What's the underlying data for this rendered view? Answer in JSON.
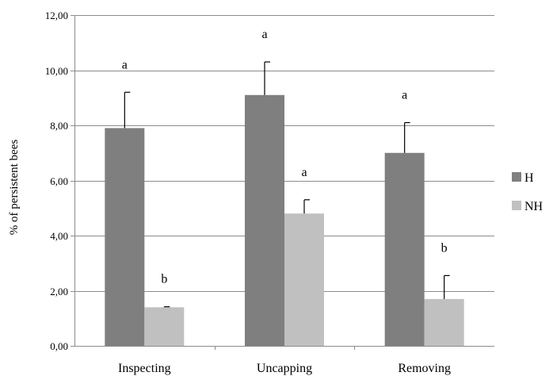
{
  "chart_data": {
    "type": "bar",
    "title": "",
    "xlabel": "",
    "ylabel": "% of persistent bees",
    "ylim": [
      0,
      12
    ],
    "yticks": [
      0,
      2,
      4,
      6,
      8,
      10,
      12
    ],
    "ytick_labels": [
      "0,00",
      "2,00",
      "4,00",
      "6,00",
      "8,00",
      "10,00",
      "12,00"
    ],
    "grid": true,
    "legend_position": "right",
    "categories": [
      "Inspecting",
      "Uncapping",
      "Removing"
    ],
    "series": [
      {
        "name": "H",
        "color": "#7f7f7f",
        "values": [
          7.9,
          9.1,
          7.0
        ],
        "errors": [
          1.3,
          1.2,
          1.1
        ],
        "significance": [
          "a",
          "a",
          "a"
        ]
      },
      {
        "name": "NH",
        "color": "#c0c0c0",
        "values": [
          1.4,
          4.8,
          1.7
        ],
        "errors": [
          0.02,
          0.5,
          0.85
        ],
        "significance": [
          "b",
          "a",
          "b"
        ]
      }
    ]
  }
}
